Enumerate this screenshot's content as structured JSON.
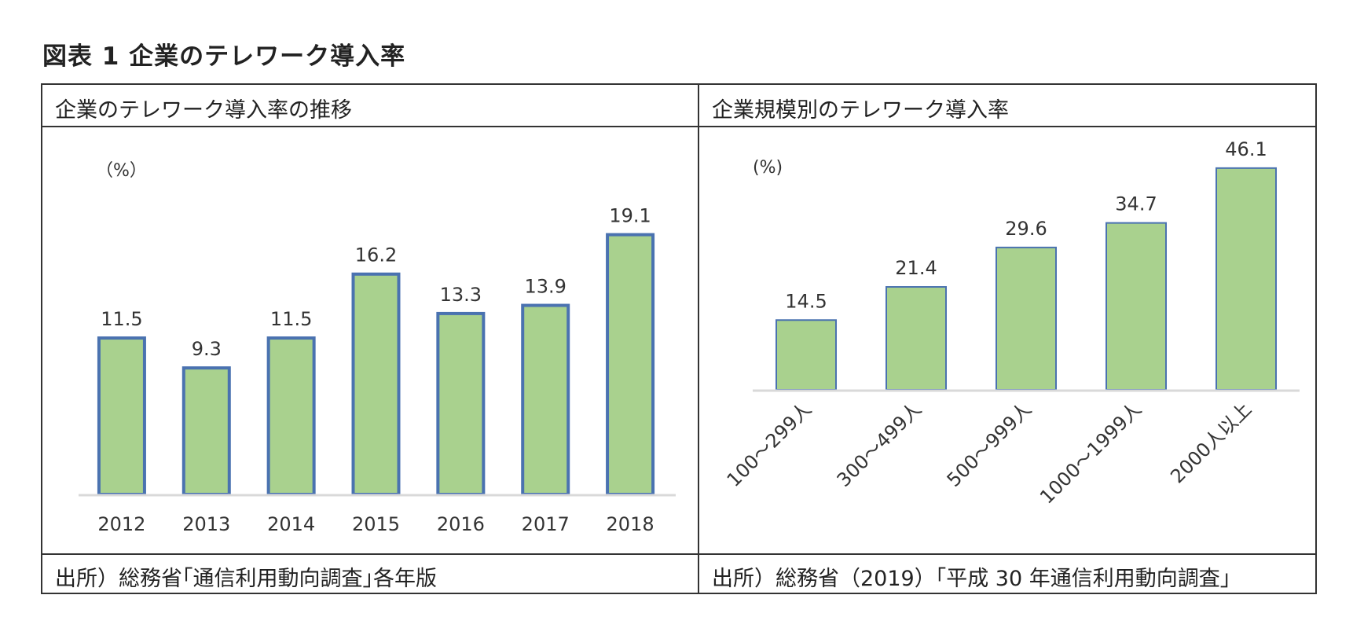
{
  "figure_title": "図表 1 企業のテレワーク導入率",
  "panels": [
    {
      "title": "企業のテレワーク導入率の推移",
      "unit": "（%）",
      "source": "出所）総務省｢通信利用動向調査｣各年版"
    },
    {
      "title": "企業規模別のテレワーク導入率",
      "unit": "(%)",
      "source": "出所）総務省（2019）「平成 30 年通信利用動向調査」"
    }
  ],
  "colors": {
    "bar_fill": "#a9d18e",
    "bar_border": "#4a72b0",
    "axis": "#d9d9d9"
  },
  "chart_data": [
    {
      "type": "bar",
      "title": "企業のテレワーク導入率の推移",
      "unit": "（%）",
      "categories": [
        "2012",
        "2013",
        "2014",
        "2015",
        "2016",
        "2017",
        "2018"
      ],
      "values": [
        11.5,
        9.3,
        11.5,
        16.2,
        13.3,
        13.9,
        19.1
      ],
      "data_labels": [
        "11.5",
        "9.3",
        "11.5",
        "16.2",
        "13.3",
        "13.9",
        "19.1"
      ],
      "ylim": [
        0,
        20
      ],
      "grid": false,
      "legend": "none"
    },
    {
      "type": "bar",
      "title": "企業規模別のテレワーク導入率",
      "unit": "(%)",
      "categories": [
        "100～299人",
        "300～499人",
        "500～999人",
        "1000～1999人",
        "2000人以上"
      ],
      "values": [
        14.5,
        21.4,
        29.6,
        34.7,
        46.1
      ],
      "data_labels": [
        "14.5",
        "21.4",
        "29.6",
        "34.7",
        "46.1"
      ],
      "ylim": [
        0,
        50
      ],
      "grid": false,
      "legend": "none"
    }
  ]
}
